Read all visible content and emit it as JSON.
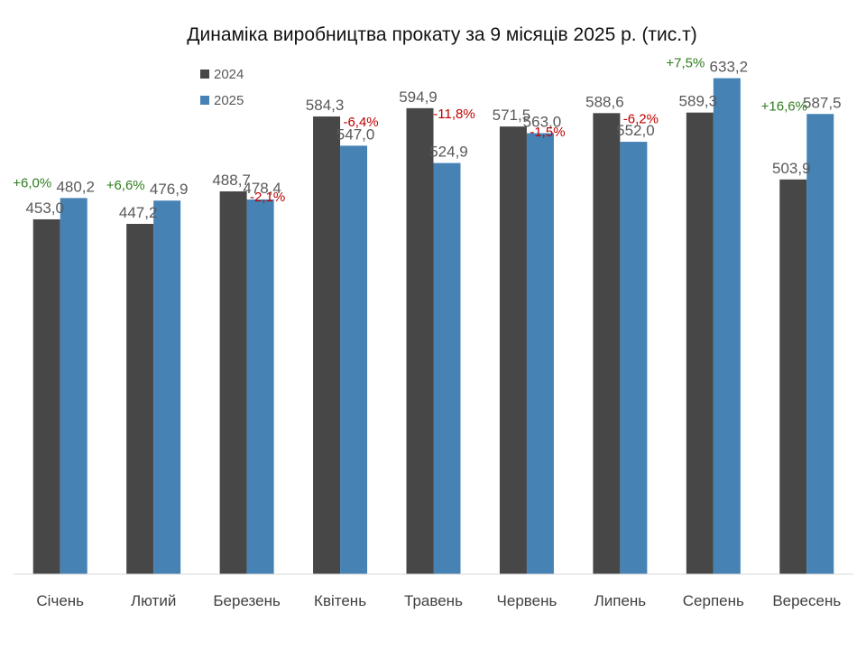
{
  "chart_data": {
    "type": "bar",
    "title": "Динаміка виробництва прокату за 9 місяців 2025 р. (тис.т)",
    "categories": [
      "Січень",
      "Лютий",
      "Березень",
      "Квітень",
      "Травень",
      "Червень",
      "Липень",
      "Серпень",
      "Вересень"
    ],
    "series": [
      {
        "name": "2024",
        "color": "#474747",
        "values": [
          453.0,
          447.2,
          488.7,
          584.3,
          594.9,
          571.5,
          588.6,
          589.3,
          503.9
        ],
        "labels": [
          "453,0",
          "447,2",
          "488,7",
          "584,3",
          "594,9",
          "571,5",
          "588,6",
          "589,3",
          "503,9"
        ]
      },
      {
        "name": "2025",
        "color": "#4682B4",
        "values": [
          480.2,
          476.9,
          478.4,
          547.0,
          524.9,
          563.0,
          552.0,
          633.2,
          587.5
        ],
        "labels": [
          "480,2",
          "476,9",
          "478,4",
          "547,0",
          "524,9",
          "563,0",
          "552,0",
          "633,2",
          "587,5"
        ]
      }
    ],
    "changes": [
      "+6,0%",
      "+6,6%",
      "-2,1%",
      "-6,4%",
      "-11,8%",
      "-1,5%",
      "-6,2%",
      "+7,5%",
      "+16,6%"
    ],
    "positive_color": "#2E7D1E",
    "negative_color": "#C00000",
    "axis_color": "#D9D9D9",
    "legend_position": "top-left",
    "ylim": [
      0,
      680
    ]
  }
}
